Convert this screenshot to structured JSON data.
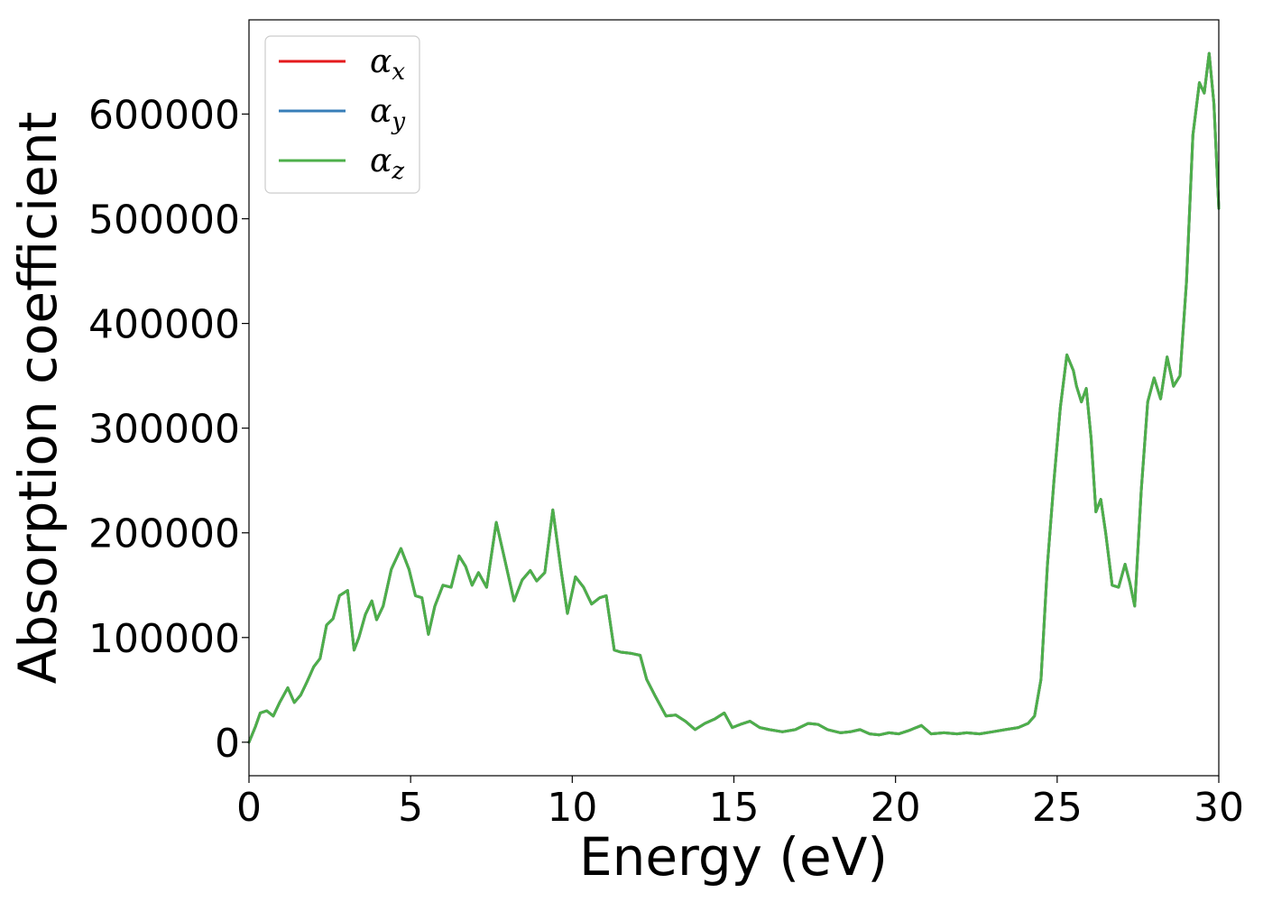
{
  "chart_data": {
    "type": "line",
    "title": "",
    "xlabel": "Energy (eV)",
    "ylabel": "Absorption coefficient",
    "xlim": [
      0,
      30
    ],
    "ylim": [
      -32000,
      690000
    ],
    "xticks": [
      0,
      5,
      10,
      15,
      20,
      25,
      30
    ],
    "xtick_labels": [
      "0",
      "5",
      "10",
      "15",
      "20",
      "25",
      "30"
    ],
    "yticks": [
      0,
      100000,
      200000,
      300000,
      400000,
      500000,
      600000
    ],
    "ytick_labels": [
      "0",
      "100000",
      "200000",
      "300000",
      "400000",
      "500000",
      "600000"
    ],
    "grid": false,
    "legend_position": "top-left",
    "legend": [
      {
        "base": "α",
        "sub": "x",
        "color": "#e41a1c"
      },
      {
        "base": "α",
        "sub": "y",
        "color": "#377eb8"
      },
      {
        "base": "α",
        "sub": "z",
        "color": "#4daf4a"
      }
    ],
    "x": [
      0,
      0.2,
      0.35,
      0.55,
      0.75,
      0.95,
      1.2,
      1.4,
      1.6,
      1.8,
      2.0,
      2.2,
      2.4,
      2.6,
      2.8,
      3.05,
      3.25,
      3.4,
      3.6,
      3.8,
      3.95,
      4.15,
      4.4,
      4.7,
      4.95,
      5.15,
      5.35,
      5.55,
      5.75,
      6.0,
      6.25,
      6.5,
      6.7,
      6.9,
      7.1,
      7.35,
      7.65,
      7.9,
      8.2,
      8.45,
      8.7,
      8.9,
      9.15,
      9.4,
      9.65,
      9.85,
      10.1,
      10.35,
      10.6,
      10.85,
      11.05,
      11.3,
      11.5,
      11.8,
      12.1,
      12.3,
      12.55,
      12.9,
      13.2,
      13.5,
      13.8,
      14.1,
      14.4,
      14.7,
      14.95,
      15.2,
      15.5,
      15.8,
      16.1,
      16.5,
      16.9,
      17.3,
      17.6,
      17.9,
      18.3,
      18.6,
      18.9,
      19.2,
      19.5,
      19.8,
      20.1,
      20.4,
      20.8,
      21.1,
      21.5,
      21.9,
      22.2,
      22.6,
      23.0,
      23.4,
      23.8,
      24.1,
      24.3,
      24.5,
      24.7,
      24.9,
      25.1,
      25.3,
      25.5,
      25.6,
      25.75,
      25.9,
      26.05,
      26.2,
      26.35,
      26.5,
      26.7,
      26.9,
      27.1,
      27.25,
      27.4,
      27.6,
      27.8,
      28.0,
      28.2,
      28.4,
      28.6,
      28.8,
      29.0,
      29.2,
      29.4,
      29.55,
      29.7,
      29.85,
      30.0
    ],
    "series": [
      {
        "color": "#e41a1c",
        "values": [
          0,
          15000,
          28000,
          30000,
          25000,
          38000,
          52000,
          38000,
          45000,
          58000,
          72000,
          80000,
          112000,
          118000,
          140000,
          145000,
          88000,
          100000,
          122000,
          135000,
          117000,
          130000,
          165000,
          185000,
          165000,
          140000,
          138000,
          103000,
          130000,
          150000,
          148000,
          178000,
          168000,
          150000,
          162000,
          148000,
          210000,
          176000,
          135000,
          155000,
          164000,
          154000,
          162000,
          222000,
          165000,
          123000,
          158000,
          148000,
          132000,
          138000,
          140000,
          88000,
          86000,
          85000,
          83000,
          60000,
          45000,
          25000,
          26000,
          20000,
          12000,
          18000,
          22000,
          28000,
          14000,
          17000,
          20000,
          14000,
          12000,
          10000,
          12000,
          18000,
          17000,
          12000,
          9000,
          10000,
          12000,
          8000,
          7000,
          9000,
          8000,
          11000,
          16000,
          8000,
          9000,
          8000,
          9000,
          8000,
          10000,
          12000,
          14000,
          18000,
          25000,
          60000,
          170000,
          250000,
          320000,
          370000,
          355000,
          340000,
          325000,
          338000,
          290000,
          220000,
          232000,
          200000,
          150000,
          148000,
          170000,
          152000,
          130000,
          240000,
          325000,
          348000,
          328000,
          368000,
          340000,
          350000,
          440000,
          580000,
          630000,
          620000,
          658000,
          610000,
          510000
        ]
      },
      {
        "color": "#377eb8",
        "values": [
          0,
          15000,
          28000,
          30000,
          25000,
          38000,
          52000,
          38000,
          45000,
          58000,
          72000,
          80000,
          112000,
          118000,
          140000,
          145000,
          88000,
          100000,
          122000,
          135000,
          117000,
          130000,
          165000,
          185000,
          165000,
          140000,
          138000,
          103000,
          130000,
          150000,
          148000,
          178000,
          168000,
          150000,
          162000,
          148000,
          210000,
          176000,
          135000,
          155000,
          164000,
          154000,
          162000,
          222000,
          165000,
          123000,
          158000,
          148000,
          132000,
          138000,
          140000,
          88000,
          86000,
          85000,
          83000,
          60000,
          45000,
          25000,
          26000,
          20000,
          12000,
          18000,
          22000,
          28000,
          14000,
          17000,
          20000,
          14000,
          12000,
          10000,
          12000,
          18000,
          17000,
          12000,
          9000,
          10000,
          12000,
          8000,
          7000,
          9000,
          8000,
          11000,
          16000,
          8000,
          9000,
          8000,
          9000,
          8000,
          10000,
          12000,
          14000,
          18000,
          25000,
          60000,
          170000,
          250000,
          320000,
          370000,
          355000,
          340000,
          325000,
          338000,
          290000,
          220000,
          232000,
          200000,
          150000,
          148000,
          170000,
          152000,
          130000,
          240000,
          325000,
          348000,
          328000,
          368000,
          340000,
          350000,
          440000,
          580000,
          630000,
          620000,
          658000,
          610000,
          510000
        ]
      },
      {
        "color": "#4daf4a",
        "values": [
          0,
          15000,
          28000,
          30000,
          25000,
          38000,
          52000,
          38000,
          45000,
          58000,
          72000,
          80000,
          112000,
          118000,
          140000,
          145000,
          88000,
          100000,
          122000,
          135000,
          117000,
          130000,
          165000,
          185000,
          165000,
          140000,
          138000,
          103000,
          130000,
          150000,
          148000,
          178000,
          168000,
          150000,
          162000,
          148000,
          210000,
          176000,
          135000,
          155000,
          164000,
          154000,
          162000,
          222000,
          165000,
          123000,
          158000,
          148000,
          132000,
          138000,
          140000,
          88000,
          86000,
          85000,
          83000,
          60000,
          45000,
          25000,
          26000,
          20000,
          12000,
          18000,
          22000,
          28000,
          14000,
          17000,
          20000,
          14000,
          12000,
          10000,
          12000,
          18000,
          17000,
          12000,
          9000,
          10000,
          12000,
          8000,
          7000,
          9000,
          8000,
          11000,
          16000,
          8000,
          9000,
          8000,
          9000,
          8000,
          10000,
          12000,
          14000,
          18000,
          25000,
          60000,
          170000,
          250000,
          320000,
          370000,
          355000,
          340000,
          325000,
          338000,
          290000,
          220000,
          232000,
          200000,
          150000,
          148000,
          170000,
          152000,
          130000,
          240000,
          325000,
          348000,
          328000,
          368000,
          340000,
          350000,
          440000,
          580000,
          630000,
          620000,
          658000,
          610000,
          510000
        ]
      }
    ]
  }
}
